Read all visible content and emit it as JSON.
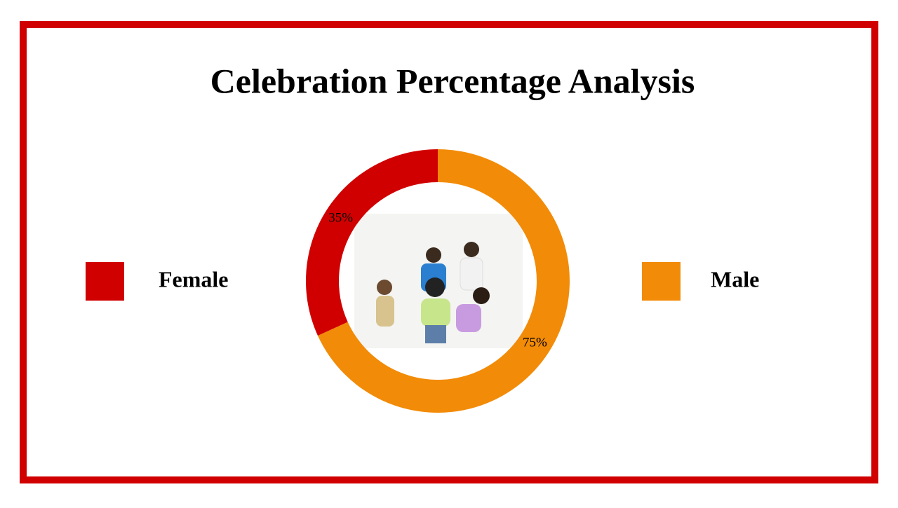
{
  "chart_data": {
    "type": "donut",
    "title": "Celebration Percentage Analysis",
    "categories": [
      "Female",
      "Male"
    ],
    "values": [
      35,
      75
    ],
    "value_labels": [
      "35%",
      "75%"
    ],
    "colors": [
      "#d10000",
      "#f28b07"
    ]
  }
}
